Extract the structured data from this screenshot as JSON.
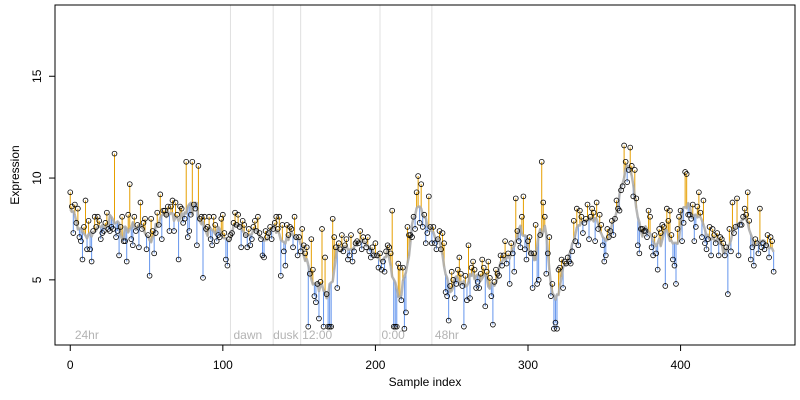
{
  "chart_data": {
    "type": "scatter",
    "xlabel": "Sample index",
    "ylabel": "Expression",
    "xlim": [
      -10,
      475
    ],
    "ylim": [
      1.8,
      18.5
    ],
    "x_ticks": [
      0,
      100,
      200,
      300,
      400
    ],
    "y_ticks": [
      5,
      10,
      15
    ],
    "grid": false,
    "legend": "none",
    "colors": {
      "above_trend": "#e69f00",
      "below_trend": "#6495ed",
      "trend": "#a9a9a9",
      "markers": "#000000",
      "boundaries": "#e0e0e0",
      "annotations": "#b3b3b3"
    },
    "boundaries": [
      105,
      133,
      151,
      203,
      237
    ],
    "annotations": [
      {
        "x": 3,
        "text": "24hr"
      },
      {
        "x": 107,
        "text": "dawn"
      },
      {
        "x": 133,
        "text": "dusk"
      },
      {
        "x": 152,
        "text": "12:00"
      },
      {
        "x": 204,
        "text": "0:00"
      },
      {
        "x": 239,
        "text": "48hr"
      }
    ],
    "y": [
      9.3,
      8.6,
      7.3,
      8.7,
      7.8,
      8.5,
      7.1,
      6.9,
      6.0,
      7.6,
      8.9,
      6.5,
      7.9,
      6.5,
      5.9,
      7.4,
      8.1,
      7.6,
      8.1,
      7.9,
      7.0,
      7.3,
      7.4,
      7.8,
      8.3,
      7.5,
      7.4,
      7.6,
      7.5,
      11.2,
      7.1,
      7.4,
      6.2,
      7.6,
      8.1,
      6.9,
      6.9,
      5.9,
      8.2,
      9.7,
      7.0,
      6.7,
      8.1,
      7.4,
      7.7,
      6.6,
      8.8,
      7.5,
      7.8,
      8.0,
      6.5,
      7.2,
      5.2,
      8.0,
      7.4,
      6.3,
      7.3,
      8.3,
      7.7,
      9.2,
      7.0,
      8.4,
      8.4,
      8.2,
      8.6,
      7.4,
      8.6,
      8.9,
      7.4,
      8.8,
      8.2,
      6.0,
      8.6,
      8.5,
      7.8,
      8.0,
      10.8,
      7.1,
      7.4,
      8.2,
      10.8,
      8.7,
      8.5,
      6.7,
      10.6,
      8.0,
      8.1,
      5.1,
      8.1,
      7.5,
      7.6,
      8.1,
      7.0,
      6.7,
      8.1,
      7.7,
      6.9,
      7.2,
      7.1,
      8.0,
      8.2,
      7.3,
      6.0,
      5.7,
      7.0,
      7.2,
      7.3,
      7.8,
      8.3,
      7.7,
      8.2,
      7.6,
      6.6,
      7.9,
      7.7,
      7.2,
      6.6,
      7.5,
      6.7,
      7.0,
      7.6,
      7.9,
      7.4,
      8.1,
      7.3,
      7.0,
      6.2,
      6.1,
      7.4,
      7.1,
      7.3,
      7.6,
      7.0,
      7.5,
      7.8,
      8.1,
      7.5,
      8.1,
      5.2,
      7.7,
      6.4,
      5.7,
      7.7,
      7.2,
      7.6,
      7.5,
      6.6,
      8.1,
      7.1,
      6.2,
      7.1,
      6.4,
      7.5,
      6.7,
      6.3,
      6.6,
      2.7,
      5.3,
      7.0,
      5.5,
      4.2,
      3.9,
      4.8,
      3.1,
      4.9,
      7.5,
      2.7,
      6.1,
      4.3,
      2.7,
      2.7,
      2.7,
      8.0,
      7.1,
      6.6,
      4.6,
      6.8,
      6.5,
      7.2,
      6.4,
      6.7,
      7.0,
      6.0,
      6.2,
      7.2,
      5.9,
      6.4,
      6.8,
      6.9,
      6.8,
      7.4,
      6.5,
      7.1,
      6.9,
      6.6,
      7.1,
      6.4,
      6.1,
      6.6,
      6.2,
      6.8,
      6.2,
      5.6,
      6.3,
      5.5,
      5.9,
      5.4,
      6.4,
      6.7,
      6.6,
      6.3,
      8.4,
      2.7,
      2.7,
      2.7,
      5.8,
      5.6,
      4.0,
      5.6,
      2.6,
      3.4,
      7.6,
      7.2,
      7.2,
      7.1,
      8.1,
      7.5,
      9.3,
      10.1,
      7.8,
      9.7,
      7.6,
      8.2,
      6.8,
      7.3,
      9.1,
      7.6,
      6.8,
      7.6,
      6.8,
      6.5,
      7.0,
      7.4,
      6.5,
      7.3,
      6.8,
      4.4,
      4.2,
      3.0,
      4.7,
      5.4,
      5.0,
      4.1,
      4.8,
      5.5,
      6.1,
      5.3,
      4.7,
      2.7,
      5.2,
      4.0,
      6.7,
      4.1,
      5.6,
      5.9,
      5.5,
      4.6,
      4.9,
      4.6,
      5.3,
      6.0,
      5.6,
      3.7,
      5.4,
      5.9,
      5.1,
      4.2,
      2.8,
      4.9,
      5.5,
      5.3,
      5.2,
      6.2,
      5.7,
      6.2,
      6.9,
      5.8,
      6.3,
      4.8,
      6.8,
      6.3,
      5.4,
      9.0,
      7.4,
      6.9,
      6.6,
      8.1,
      9.1,
      6.5,
      6.0,
      6.9,
      7.1,
      6.3,
      4.6,
      6.3,
      7.7,
      4.8,
      5.0,
      7.2,
      10.8,
      8.8,
      8.1,
      5.3,
      6.3,
      7.1,
      4.2,
      4.8,
      2.6,
      2.9,
      2.6,
      5.5,
      5.6,
      6.0,
      4.6,
      5.9,
      5.8,
      6.1,
      5.9,
      5.8,
      6.4,
      7.9,
      6.9,
      8.5,
      6.7,
      8.4,
      8.1,
      7.3,
      7.8,
      8.0,
      8.7,
      7.0,
      8.1,
      8.5,
      8.3,
      6.9,
      8.8,
      7.5,
      8.2,
      7.7,
      6.7,
      5.9,
      6.2,
      7.5,
      7.1,
      7.4,
      7.9,
      7.2,
      8.0,
      8.9,
      8.5,
      8.4,
      9.4,
      9.6,
      11.6,
      10.8,
      9.8,
      10.4,
      11.5,
      10.6,
      9.1,
      10.4,
      9.0,
      6.7,
      6.3,
      7.5,
      7.5,
      7.4,
      7.4,
      7.1,
      8.4,
      8.1,
      6.6,
      6.2,
      7.2,
      6.3,
      5.5,
      7.5,
      7.3,
      7.7,
      7.6,
      4.7,
      8.5,
      7.9,
      8.4,
      7.2,
      6.0,
      5.7,
      4.8,
      7.5,
      8.1,
      8.4,
      6.9,
      7.8,
      10.3,
      10.2,
      8.2,
      8.2,
      8.0,
      8.7,
      6.9,
      7.6,
      8.6,
      9.3,
      8.3,
      7.1,
      8.9,
      6.8,
      6.5,
      7.0,
      7.6,
      6.2,
      7.5,
      7.2,
      6.8,
      7.3,
      6.2,
      7.1,
      7.0,
      6.8,
      6.2,
      6.6,
      4.3,
      7.5,
      6.4,
      8.8,
      7.3,
      7.6,
      9.0,
      6.2,
      7.7,
      7.7,
      8.1,
      8.5,
      8.2,
      9.3,
      7.9,
      6.0,
      6.6,
      5.7,
      7.0,
      6.8,
      6.3,
      8.5,
      6.6,
      6.8,
      6.5,
      6.7,
      7.2,
      6.1,
      7.1,
      6.9,
      5.4
    ]
  }
}
